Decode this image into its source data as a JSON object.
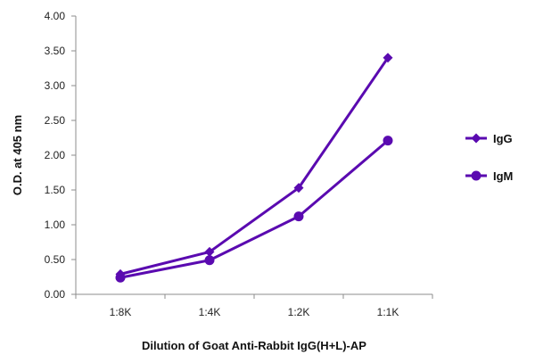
{
  "chart_data": {
    "type": "line",
    "categories": [
      "1:8K",
      "1:4K",
      "1:2K",
      "1:1K"
    ],
    "series": [
      {
        "name": "IgG",
        "values": [
          0.29,
          0.61,
          1.53,
          3.4
        ],
        "marker": "diamond"
      },
      {
        "name": "IgM",
        "values": [
          0.24,
          0.49,
          1.12,
          2.21
        ],
        "marker": "circle"
      }
    ],
    "xlabel": "Dilution of Goat Anti-Rabbit IgG(H+L)-AP",
    "ylabel": "O.D. at 405 nm",
    "ylim": [
      0,
      4
    ],
    "yticks": [
      "0.00",
      "0.50",
      "1.00",
      "1.50",
      "2.00",
      "2.50",
      "3.00",
      "3.50",
      "4.00"
    ],
    "grid": false,
    "legend": "right",
    "color": "#5a0ab0"
  }
}
